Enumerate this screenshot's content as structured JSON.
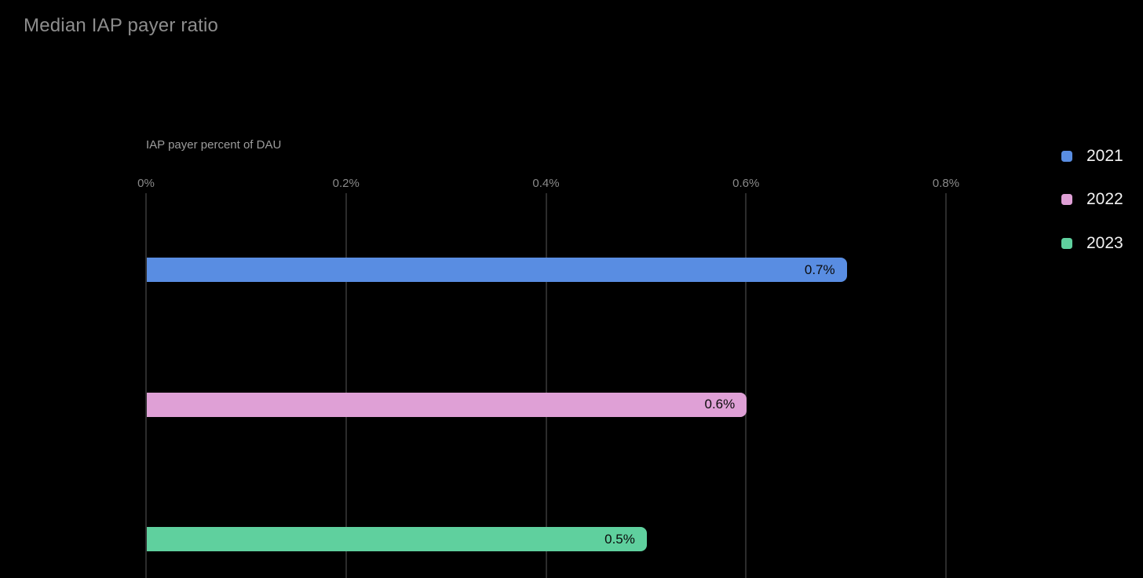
{
  "title": "Median IAP payer ratio",
  "axis": {
    "title": "IAP payer percent of DAU"
  },
  "chart_data": {
    "type": "bar",
    "orientation": "horizontal",
    "title": "Median IAP payer ratio",
    "xlabel": "IAP payer percent of DAU",
    "ylabel": "",
    "xlim": [
      0,
      1.0
    ],
    "x_ticks": [
      {
        "value": 0,
        "label": "0%"
      },
      {
        "value": 0.2,
        "label": "0.2%"
      },
      {
        "value": 0.4,
        "label": "0.4%"
      },
      {
        "value": 0.6,
        "label": "0.6%"
      },
      {
        "value": 0.8,
        "label": "0.8%"
      }
    ],
    "grid": true,
    "legend_position": "right",
    "series": [
      {
        "name": "2021",
        "value": 0.7,
        "data_label": "0.7%",
        "color": "#598de2"
      },
      {
        "name": "2022",
        "value": 0.6,
        "data_label": "0.6%",
        "color": "#dfa0d6"
      },
      {
        "name": "2023",
        "value": 0.5,
        "data_label": "0.5%",
        "color": "#5fd09e"
      }
    ]
  },
  "colors": {
    "background": "#000000",
    "title_text": "#8d8d8d",
    "axis_text": "#8a8a8a",
    "gridline": "#2c2c2c",
    "legend_text": "#f2f2f2",
    "bar_label_text": "#0a0a0a"
  }
}
